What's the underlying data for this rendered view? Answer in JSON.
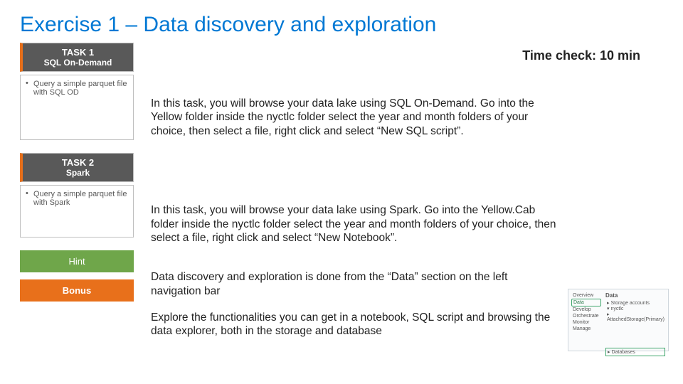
{
  "title": "Exercise 1 – Data discovery and exploration",
  "time_check": "Time check: 10 min",
  "colors": {
    "title": "#0078d4",
    "task_bg": "#595959",
    "accent_orange": "#e8701b",
    "hint_bg": "#6fa64a",
    "border": "#bfbfbf"
  },
  "left": {
    "task1": {
      "title": "TASK 1",
      "sub": "SQL On-Demand",
      "desc": "Query a simple parquet file with SQL OD"
    },
    "task2": {
      "title": "TASK 2",
      "sub": "Spark",
      "desc": "Query a simple parquet file with Spark"
    },
    "hint": "Hint",
    "bonus": "Bonus"
  },
  "paragraphs": {
    "p1": "In this task, you will browse your data lake using SQL On-Demand. Go into the Yellow folder inside the nyctlc folder select the year and month folders of your choice, then select a file, right click and select “New SQL script”.",
    "p2": "In this task, you will browse your data lake using Spark. Go into the Yellow.Cab folder inside the nyctlc folder select the year and month folders of your choice, then select a file, right click and select “New Notebook”.",
    "p3": "Data discovery and exploration is done from the “Data” section on the left navigation bar",
    "p4": "Explore the functionalities you can get in a notebook, SQL script and browsing the data explorer, both in the storage and database"
  },
  "thumb": {
    "nav": [
      "Overview",
      "Data",
      "Develop",
      "Orchestrate",
      "Monitor",
      "Manage"
    ],
    "nav_selected_index": 1,
    "pane_header": "Data",
    "lines": [
      "▸ Storage accounts",
      "  ▾ nyctlc",
      "    ▸ AttachedStorage(Primary)"
    ],
    "boxed": "▸ Databases"
  }
}
